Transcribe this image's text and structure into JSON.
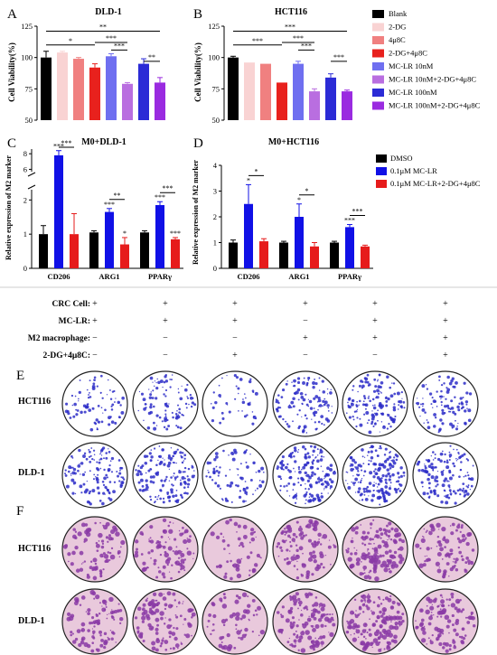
{
  "panel_letters": [
    "A",
    "B",
    "C",
    "D",
    "E",
    "F"
  ],
  "colors": {
    "blank": "#000000",
    "dg": "#f9d3d3",
    "q4u8c": "#f08080",
    "dg_q4u8c": "#e8211d",
    "mclr10": "#6f6ff0",
    "mclr10_combo": "#b96ee0",
    "mclr100": "#2b2bd6",
    "mclr100_combo": "#9a2be0",
    "dmso": "#000000",
    "mclr01": "#1010e6",
    "mclr01_combo": "#e61b1b",
    "colony_bg": "#ffffff",
    "colony_dot": "#2d2dc8",
    "transwell_bg": "#e9c9dc",
    "transwell_dot": "#8a3aa6"
  },
  "legend_top": [
    "Blank",
    "2-DG",
    "4μ8C",
    "2-DG+4μ8C",
    "MC-LR 10nM",
    "MC-LR 10nM+2-DG+4μ8C",
    "MC-LR 100nM",
    "MC-LR 100nM+2-DG+4μ8C"
  ],
  "legend_mid": [
    "DMSO",
    "0.1μM MC-LR",
    "0.1μM MC-LR+2-DG+4μ8C"
  ],
  "chart_data": [
    {
      "type": "bar",
      "panel": "A",
      "title": "DLD-1",
      "ylabel": "Cell Viability(%)",
      "ylim": [
        50,
        125
      ],
      "yticks": [
        50,
        75,
        100,
        125
      ],
      "series": [
        {
          "name": "Blank",
          "values": [
            100
          ]
        },
        {
          "name": "2-DG",
          "values": [
            104
          ]
        },
        {
          "name": "4μ8C",
          "values": [
            99
          ]
        },
        {
          "name": "2-DG+4μ8C",
          "values": [
            92
          ]
        },
        {
          "name": "MC-LR 10nM",
          "values": [
            101
          ]
        },
        {
          "name": "MC-LR 10nM+2-DG+4μ8C",
          "values": [
            79
          ]
        },
        {
          "name": "MC-LR 100nM",
          "values": [
            95
          ]
        },
        {
          "name": "MC-LR 100nM+2-DG+4μ8C",
          "values": [
            80
          ]
        }
      ],
      "errors": [
        5,
        1,
        1,
        3,
        2,
        1,
        4,
        4
      ],
      "significance": [
        {
          "from": 0,
          "to": 3,
          "label": "*"
        },
        {
          "from": 0,
          "to": 7,
          "label": "**"
        },
        {
          "from": 3,
          "to": 5,
          "label": "***"
        },
        {
          "from": 4,
          "to": 5,
          "label": "***"
        },
        {
          "from": 6,
          "to": 7,
          "label": "**"
        }
      ]
    },
    {
      "type": "bar",
      "panel": "B",
      "title": "HCT116",
      "ylabel": "Cell Viability(%)",
      "ylim": [
        50,
        125
      ],
      "yticks": [
        50,
        75,
        100,
        125
      ],
      "series": [
        {
          "name": "Blank",
          "values": [
            100
          ]
        },
        {
          "name": "2-DG",
          "values": [
            96
          ]
        },
        {
          "name": "4μ8C",
          "values": [
            95
          ]
        },
        {
          "name": "2-DG+4μ8C",
          "values": [
            80
          ]
        },
        {
          "name": "MC-LR 10nM",
          "values": [
            95
          ]
        },
        {
          "name": "MC-LR 10nM+2-DG+4μ8C",
          "values": [
            73
          ]
        },
        {
          "name": "MC-LR 100nM",
          "values": [
            84
          ]
        },
        {
          "name": "MC-LR 100nM+2-DG+4μ8C",
          "values": [
            73
          ]
        }
      ],
      "errors": [
        1,
        0,
        0,
        0,
        2,
        2,
        3,
        1
      ],
      "significance": [
        {
          "from": 0,
          "to": 3,
          "label": "***"
        },
        {
          "from": 0,
          "to": 7,
          "label": "***"
        },
        {
          "from": 3,
          "to": 5,
          "label": "***"
        },
        {
          "from": 4,
          "to": 5,
          "label": "***"
        },
        {
          "from": 6,
          "to": 7,
          "label": "***"
        }
      ]
    },
    {
      "type": "bar",
      "panel": "C",
      "title": "M0+DLD-1",
      "ylabel": "Relative expression of M2 marker",
      "categories": [
        "CD206",
        "ARG1",
        "PPARγ"
      ],
      "yticks_lower": [
        0,
        1,
        2
      ],
      "yticks_upper": [
        6,
        8
      ],
      "series": [
        {
          "name": "DMSO",
          "values": [
            1.0,
            1.05,
            1.05
          ],
          "errors": [
            0.25,
            0.05,
            0.05
          ]
        },
        {
          "name": "0.1μM MC-LR",
          "values": [
            7.8,
            1.65,
            1.85
          ],
          "errors": [
            0.6,
            0.1,
            0.1
          ]
        },
        {
          "name": "0.1μM MC-LR+2-DG+4μ8C",
          "values": [
            1.0,
            0.7,
            0.85
          ],
          "errors": [
            0.6,
            0.2,
            0.05
          ]
        }
      ],
      "stars": [
        [
          "",
          "***",
          ""
        ],
        [
          "",
          "***",
          "*"
        ],
        [
          "",
          "***",
          "***"
        ]
      ],
      "brackets": [
        "***",
        "**",
        "***"
      ]
    },
    {
      "type": "bar",
      "panel": "D",
      "title": "M0+HCT116",
      "ylabel": "Relative expression of M2 marker",
      "categories": [
        "CD206",
        "ARG1",
        "PPARγ"
      ],
      "ylim": [
        0,
        4
      ],
      "yticks": [
        0,
        1,
        2,
        3,
        4
      ],
      "series": [
        {
          "name": "DMSO",
          "values": [
            1.0,
            1.0,
            1.0
          ],
          "errors": [
            0.1,
            0.05,
            0.05
          ]
        },
        {
          "name": "0.1μM MC-LR",
          "values": [
            2.5,
            2.0,
            1.6
          ],
          "errors": [
            0.75,
            0.5,
            0.1
          ]
        },
        {
          "name": "0.1μM MC-LR+2-DG+4μ8C",
          "values": [
            1.05,
            0.85,
            0.85
          ],
          "errors": [
            0.1,
            0.15,
            0.05
          ]
        }
      ],
      "stars": [
        [
          "",
          "*",
          ""
        ],
        [
          "",
          "*",
          ""
        ],
        [
          "",
          "***",
          ""
        ]
      ],
      "brackets": [
        "*",
        "*",
        "***"
      ]
    }
  ],
  "conditions": {
    "rows": [
      {
        "label": "CRC Cell:",
        "marks": [
          "+",
          "+",
          "+",
          "+",
          "+",
          "+"
        ]
      },
      {
        "label": "MC-LR:",
        "marks": [
          "+",
          "+",
          "+",
          "−",
          "+",
          "+"
        ]
      },
      {
        "label": "M2 macrophage:",
        "marks": [
          "−",
          "−",
          "−",
          "+",
          "+",
          "+"
        ]
      },
      {
        "label": "2-DG+4μ8C:",
        "marks": [
          "−",
          "−",
          "+",
          "−",
          "−",
          "+"
        ]
      }
    ]
  },
  "row_labels": {
    "e": [
      "HCT116",
      "DLD-1"
    ],
    "f": [
      "HCT116",
      "DLD-1"
    ]
  }
}
